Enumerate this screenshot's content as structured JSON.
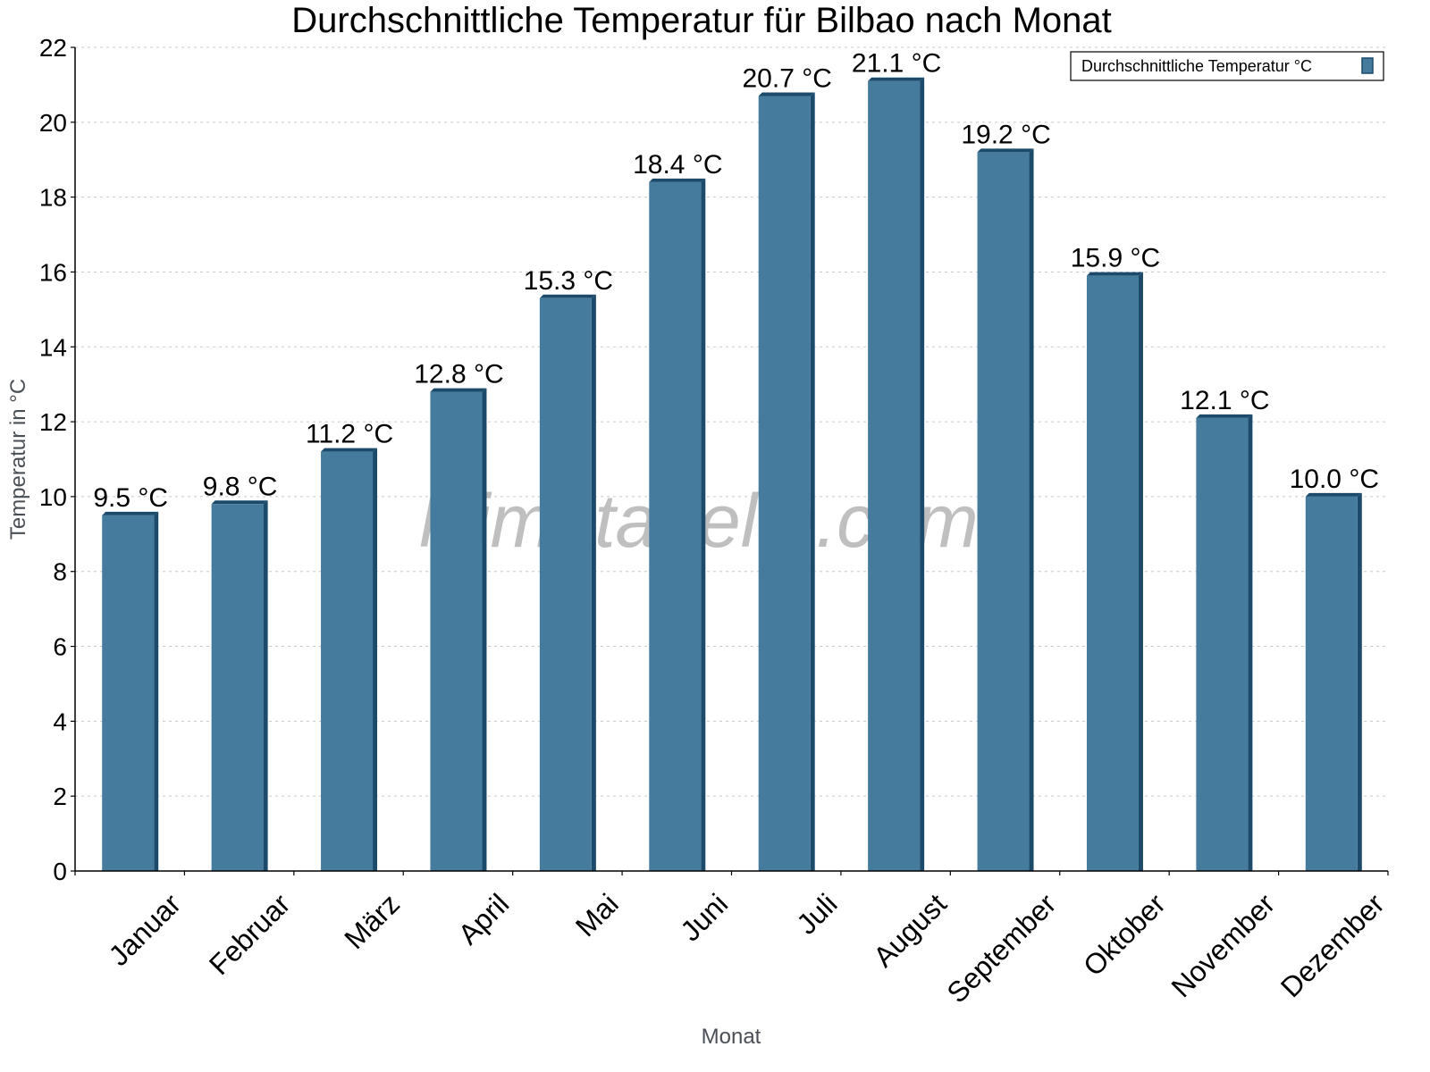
{
  "chart_data": {
    "type": "bar",
    "title": "Durchschnittliche Temperatur für Bilbao nach Monat",
    "xlabel": "Monat",
    "ylabel": "Temperatur in °C",
    "ylim": [
      0,
      22
    ],
    "yticks": [
      0,
      2,
      4,
      6,
      8,
      10,
      12,
      14,
      16,
      18,
      20,
      22
    ],
    "grid": true,
    "legend_position": "top-right",
    "categories": [
      "Januar",
      "Februar",
      "März",
      "April",
      "Mai",
      "Juni",
      "Juli",
      "August",
      "September",
      "Oktober",
      "November",
      "Dezember"
    ],
    "series": [
      {
        "name": "Durchschnittliche Temperatur °C",
        "values": [
          9.5,
          9.8,
          11.2,
          12.8,
          15.3,
          18.4,
          20.7,
          21.1,
          19.2,
          15.9,
          12.1,
          10.0
        ],
        "labels": [
          "9.5 °C",
          "9.8 °C",
          "11.2 °C",
          "12.8 °C",
          "15.3 °C",
          "18.4 °C",
          "20.7 °C",
          "21.1 °C",
          "19.2 °C",
          "15.9 °C",
          "12.1 °C",
          "10.0 °C"
        ],
        "color": "#457b9d",
        "shade_color": "#1b4a6b"
      }
    ],
    "watermark": "klimatabelle.com"
  }
}
